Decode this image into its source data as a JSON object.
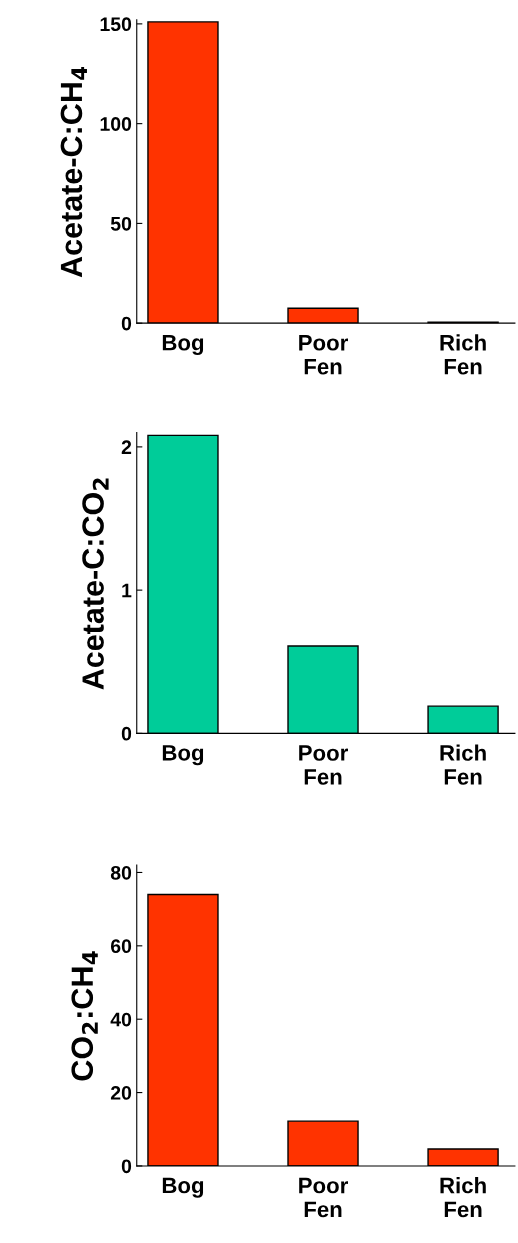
{
  "chart_data": [
    {
      "type": "bar",
      "ylabel": "Acetate-C:CH$_{4}$",
      "categories": [
        "Bog",
        "Poor\nFen",
        "Rich\nFen"
      ],
      "values": [
        151,
        7.5,
        0.5
      ],
      "color": "#ff3300",
      "ylim": [
        0,
        152
      ],
      "yticks": [
        0,
        50,
        100,
        150
      ],
      "grid": false,
      "legend": false
    },
    {
      "type": "bar",
      "ylabel": "Acetate-C:CO$_{2}$",
      "categories": [
        "Bog",
        "Poor\nFen",
        "Rich\nFen"
      ],
      "values": [
        2.08,
        0.61,
        0.19
      ],
      "color": "#00cc99",
      "ylim": [
        0,
        2.1
      ],
      "yticks": [
        0,
        1,
        2
      ],
      "grid": false,
      "legend": false
    },
    {
      "type": "bar",
      "ylabel": "CO$_{2}$:CH$_{4}$",
      "categories": [
        "Bog",
        "Poor\nFen",
        "Rich\nFen"
      ],
      "values": [
        74,
        12.2,
        4.6
      ],
      "color": "#ff3300",
      "ylim": [
        0,
        82
      ],
      "yticks": [
        0,
        20,
        40,
        60,
        80
      ],
      "grid": false,
      "legend": false
    }
  ]
}
